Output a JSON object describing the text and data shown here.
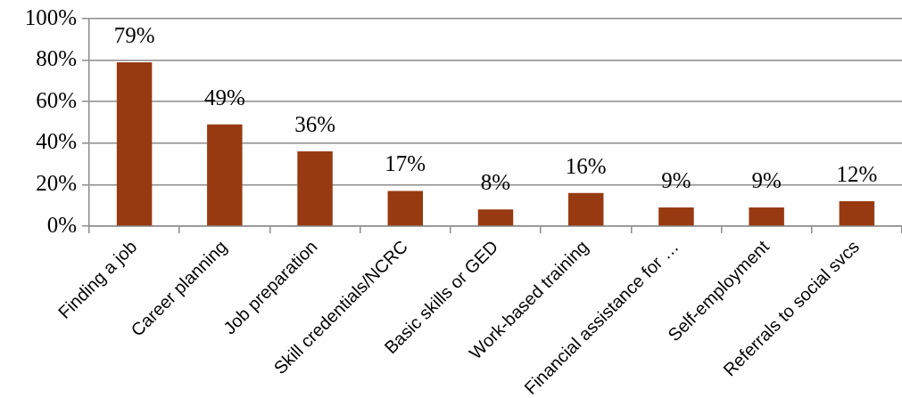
{
  "chart_data": {
    "type": "bar",
    "categories": [
      "Finding a job",
      "Career planning",
      "Job preparation",
      "Skill credentials/NCRC",
      "Basic skills or GED",
      "Work-based training",
      "Financial assistance for …",
      "Self-employment",
      "Referrals to social svcs"
    ],
    "values": [
      79,
      49,
      36,
      17,
      8,
      16,
      9,
      9,
      12
    ],
    "color": "#983a11",
    "value_labels": [
      "79%",
      "49%",
      "36%",
      "17%",
      "8%",
      "16%",
      "9%",
      "9%",
      "12%"
    ],
    "ylim": [
      0,
      100
    ],
    "yticks": [
      {
        "value": 0,
        "label": "0%"
      },
      {
        "value": 20,
        "label": "20%"
      },
      {
        "value": 40,
        "label": "40%"
      },
      {
        "value": 60,
        "label": "60%"
      },
      {
        "value": 80,
        "label": "80%"
      },
      {
        "value": 100,
        "label": "100%"
      }
    ],
    "grid": "y"
  }
}
